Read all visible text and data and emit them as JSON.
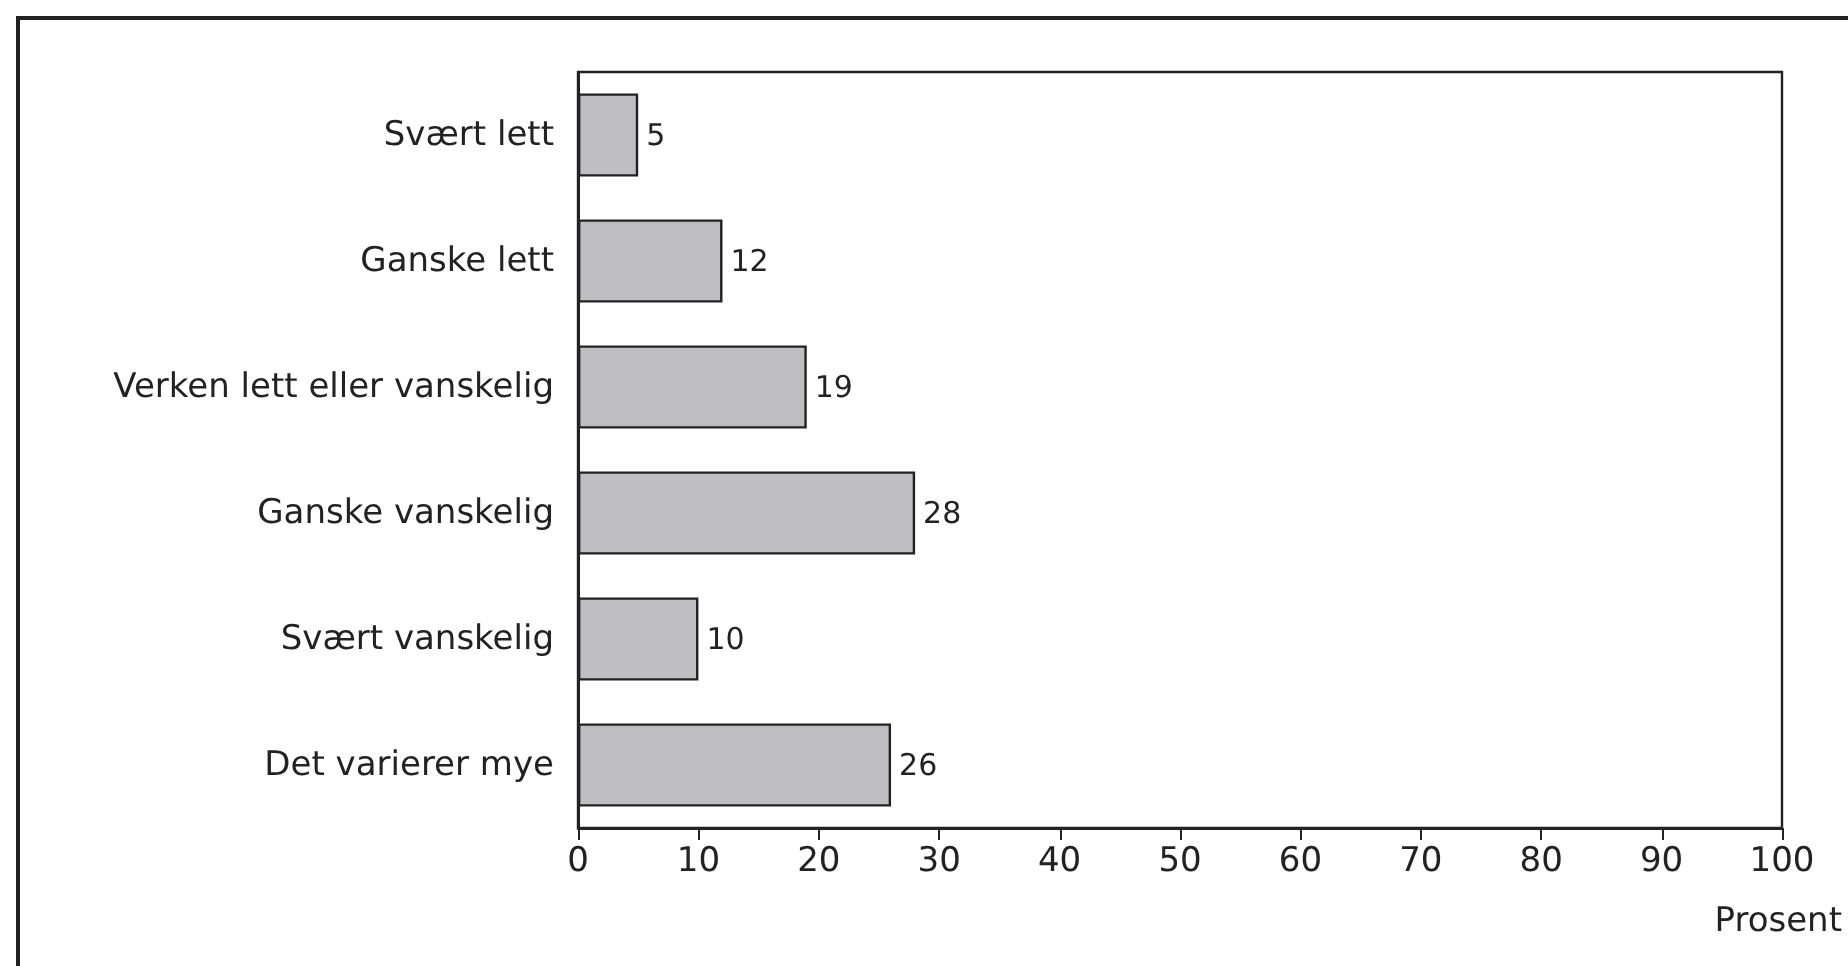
{
  "chart_data": {
    "type": "bar",
    "orientation": "horizontal",
    "xlabel": "Prosent",
    "categories": [
      "Svært lett",
      "Ganske lett",
      "Verken lett eller vanskelig",
      "Ganske vanskelig",
      "Svært vanskelig",
      "Det varierer mye"
    ],
    "values": [
      5,
      12,
      19,
      28,
      10,
      26
    ],
    "color": "#bfbfc2",
    "xlim": [
      0,
      100
    ],
    "xticks": [
      0,
      10,
      20,
      30,
      40,
      50,
      60,
      70,
      80,
      90,
      100
    ],
    "data_labels": true
  }
}
